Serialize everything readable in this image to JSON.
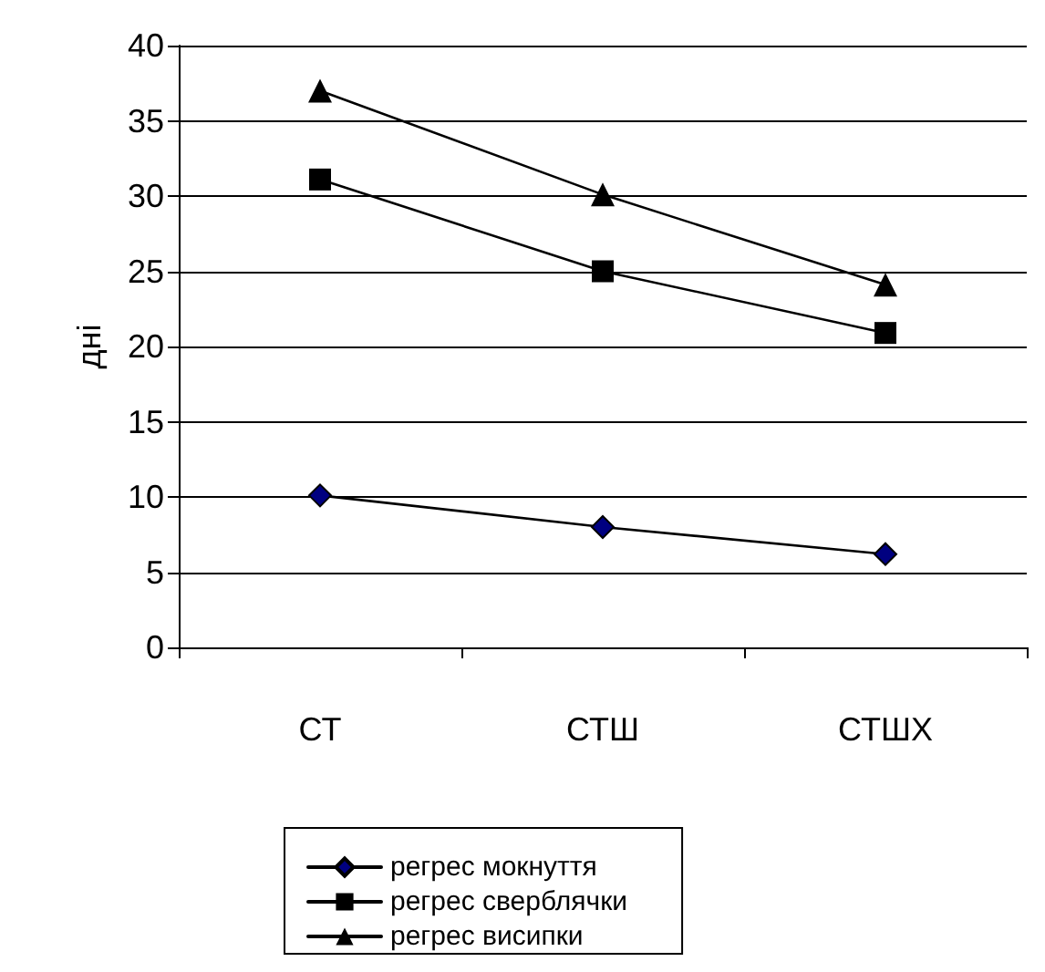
{
  "chart_data": {
    "type": "line",
    "ylabel": "дні",
    "categories": [
      "СТ",
      "СТШ",
      "СТШХ"
    ],
    "series": [
      {
        "name": "регрес мокнуття",
        "color": "#000080",
        "marker": "diamond",
        "values": [
          10.1,
          8.0,
          6.2
        ]
      },
      {
        "name": "регрес сверблячки",
        "color": "#000000",
        "marker": "square",
        "values": [
          31.1,
          25.0,
          20.9
        ]
      },
      {
        "name": "регрес висипки",
        "color": "#000000",
        "marker": "triangle",
        "values": [
          37.0,
          30.1,
          24.1
        ]
      }
    ],
    "ylim": [
      0,
      40
    ],
    "yticks": [
      0,
      5,
      10,
      15,
      20,
      25,
      30,
      35,
      40
    ],
    "grid": "y",
    "legend": "bottom",
    "line_style": "solid"
  }
}
